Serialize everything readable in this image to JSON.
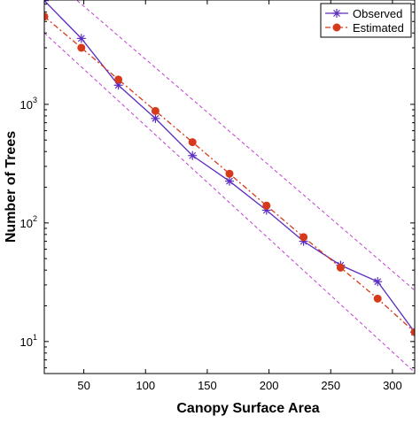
{
  "chart_data": {
    "type": "line",
    "xlabel": "Canopy Surface Area",
    "ylabel": "Number of Trees",
    "xlim": [
      18,
      318
    ],
    "ylim_log10": [
      0.73,
      3.88
    ],
    "y_scale": "log",
    "x_ticks": [
      50,
      100,
      150,
      200,
      250,
      300
    ],
    "x_tick_labels": [
      "50",
      "100",
      "150",
      "200",
      "250",
      "300"
    ],
    "y_ticks": [
      10,
      100,
      1000
    ],
    "y_tick_labels": [
      {
        "base": "10",
        "exp": "1"
      },
      {
        "base": "10",
        "exp": "2"
      },
      {
        "base": "10",
        "exp": "3"
      }
    ],
    "grid": false,
    "legend_position": "top-right",
    "x": [
      18,
      48,
      78,
      108,
      138,
      168,
      198,
      228,
      258,
      288,
      318
    ],
    "series": [
      {
        "name": "Observed",
        "color": "#5b2dbf",
        "marker": "asterisk",
        "line": "solid",
        "values": [
          7500,
          3600,
          1450,
          760,
          370,
          225,
          128,
          70,
          44,
          32,
          12
        ]
      },
      {
        "name": "Estimated",
        "color": "#d63a1a",
        "marker": "circle",
        "line": "dash-dot",
        "values": [
          5500,
          3000,
          1620,
          880,
          480,
          260,
          140,
          76,
          42,
          23,
          12
        ]
      }
    ],
    "bounds": {
      "color": "#c040d0",
      "line": "dashed",
      "lines": [
        {
          "x": [
            18,
            318
          ],
          "values": [
            13000,
            27
          ]
        },
        {
          "x": [
            18,
            318
          ],
          "values": [
            4000,
            5.5
          ]
        }
      ]
    }
  }
}
